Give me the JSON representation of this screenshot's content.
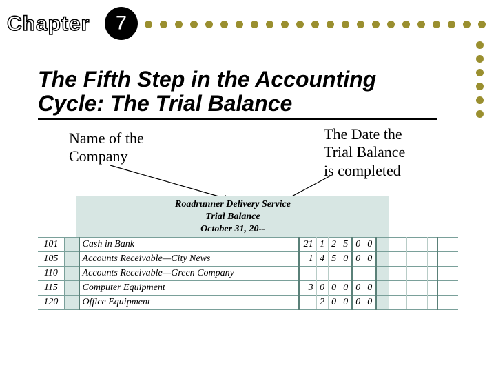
{
  "chapter": {
    "label": "Chapter",
    "number": "7"
  },
  "dots": {
    "row_count": 23,
    "col_count": 6,
    "color": "#9a8f2f"
  },
  "title": "The Fifth Step in the Accounting Cycle: The Trial Balance",
  "callouts": {
    "left": "Name of the\nCompany",
    "right": "The Date the\nTrial Balance\nis completed"
  },
  "trial_balance": {
    "company": "Roadrunner Delivery Service",
    "report_name": "Trial Balance",
    "date": "October 31, 20--",
    "header_bg": "#d7e6e3",
    "grid_color": "#7aa09a",
    "rows": [
      {
        "acct": "101",
        "name": "Cash in Bank",
        "debit": [
          "21",
          "1",
          "2",
          "5",
          "0",
          "0"
        ],
        "credit": [
          "",
          "",
          "",
          "",
          "",
          ""
        ]
      },
      {
        "acct": "105",
        "name": "Accounts Receivable—City News",
        "debit": [
          "1",
          "4",
          "5",
          "0",
          "0",
          "0"
        ],
        "credit": [
          "",
          "",
          "",
          "",
          "",
          ""
        ]
      },
      {
        "acct": "110",
        "name": "Accounts Receivable—Green Company",
        "debit": [
          "",
          "",
          "",
          "",
          "",
          ""
        ],
        "credit": [
          "",
          "",
          "",
          "",
          "",
          ""
        ]
      },
      {
        "acct": "115",
        "name": "Computer Equipment",
        "debit": [
          "3",
          "0",
          "0",
          "0",
          "0",
          "0"
        ],
        "credit": [
          "",
          "",
          "",
          "",
          "",
          ""
        ]
      },
      {
        "acct": "120",
        "name": "Office Equipment",
        "debit": [
          "",
          "2",
          "0",
          "0",
          "0",
          "0"
        ],
        "credit": [
          "",
          "",
          "",
          "",
          "",
          ""
        ]
      }
    ]
  },
  "colors": {
    "bg": "#ffffff",
    "text": "#000000"
  }
}
